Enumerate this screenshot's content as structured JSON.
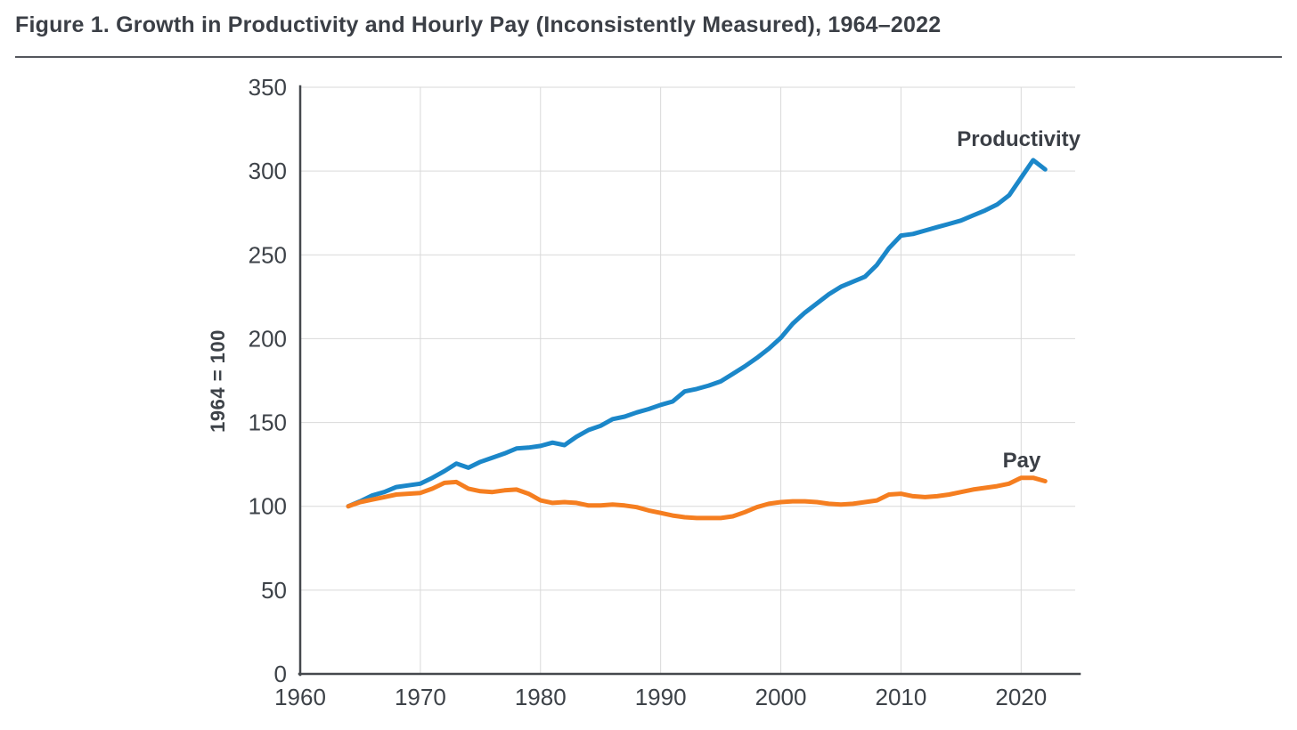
{
  "colors": {
    "productivity_blue": "#1b87c9",
    "pay_orange": "#f57e20",
    "grid": "#d9d9d9",
    "axis": "#45484d",
    "text": "#3d4248",
    "title_text": "#3b3f46",
    "rule": "#54575d",
    "background": "#ffffff"
  },
  "chart_data": {
    "type": "line",
    "title": "Figure 1. Growth in Productivity and Hourly Pay (Inconsistently Measured), 1964–2022",
    "xlabel": "",
    "ylabel": "1964 = 100",
    "ylim": [
      0,
      350
    ],
    "yticks": [
      0,
      50,
      100,
      150,
      200,
      250,
      300,
      350
    ],
    "xlim": [
      1960,
      2024.5
    ],
    "xticks": [
      1960,
      1970,
      1980,
      1990,
      2000,
      2010,
      2020
    ],
    "grid": true,
    "legend_position": "inline-labels-at-line-end",
    "x": [
      1964,
      1965,
      1966,
      1967,
      1968,
      1969,
      1970,
      1971,
      1972,
      1973,
      1974,
      1975,
      1976,
      1977,
      1978,
      1979,
      1980,
      1981,
      1982,
      1983,
      1984,
      1985,
      1986,
      1987,
      1988,
      1989,
      1990,
      1991,
      1992,
      1993,
      1994,
      1995,
      1996,
      1997,
      1998,
      1999,
      2000,
      2001,
      2002,
      2003,
      2004,
      2005,
      2006,
      2007,
      2008,
      2009,
      2010,
      2011,
      2012,
      2013,
      2014,
      2015,
      2016,
      2017,
      2018,
      2019,
      2020,
      2021,
      2022
    ],
    "series": [
      {
        "name": "Productivity",
        "color": "#1b87c9",
        "values": [
          100,
          103,
          106.5,
          108.5,
          111.5,
          112.5,
          113.5,
          117,
          121,
          125.5,
          123,
          126.5,
          129,
          131.5,
          134.5,
          135,
          136,
          138,
          136.5,
          141.5,
          145.5,
          148,
          152,
          153.5,
          156,
          158,
          160.5,
          162.5,
          168.5,
          170,
          172,
          174.5,
          179,
          183.5,
          188.5,
          194,
          200.5,
          209,
          215.5,
          221,
          226.5,
          231,
          234,
          237,
          244,
          254,
          261.5,
          262.5,
          264.5,
          266.5,
          268.5,
          270.5,
          273.5,
          276.5,
          280,
          285.5,
          296,
          306.5,
          301
        ]
      },
      {
        "name": "Pay",
        "color": "#f57e20",
        "values": [
          100,
          102.5,
          104,
          105.5,
          107,
          107.5,
          108,
          110.5,
          114,
          114.5,
          110.5,
          109,
          108.5,
          109.5,
          110,
          107.5,
          103.5,
          102,
          102.5,
          102,
          100.5,
          100.5,
          101,
          100.5,
          99.5,
          97.5,
          96,
          94.5,
          93.5,
          93,
          93,
          93,
          94,
          96.5,
          99.5,
          101.5,
          102.5,
          103,
          103,
          102.5,
          101.5,
          101,
          101.5,
          102.5,
          103.5,
          107,
          107.5,
          106,
          105.5,
          106,
          107,
          108.5,
          110,
          111,
          112,
          113.5,
          117,
          117,
          115
        ]
      }
    ]
  }
}
